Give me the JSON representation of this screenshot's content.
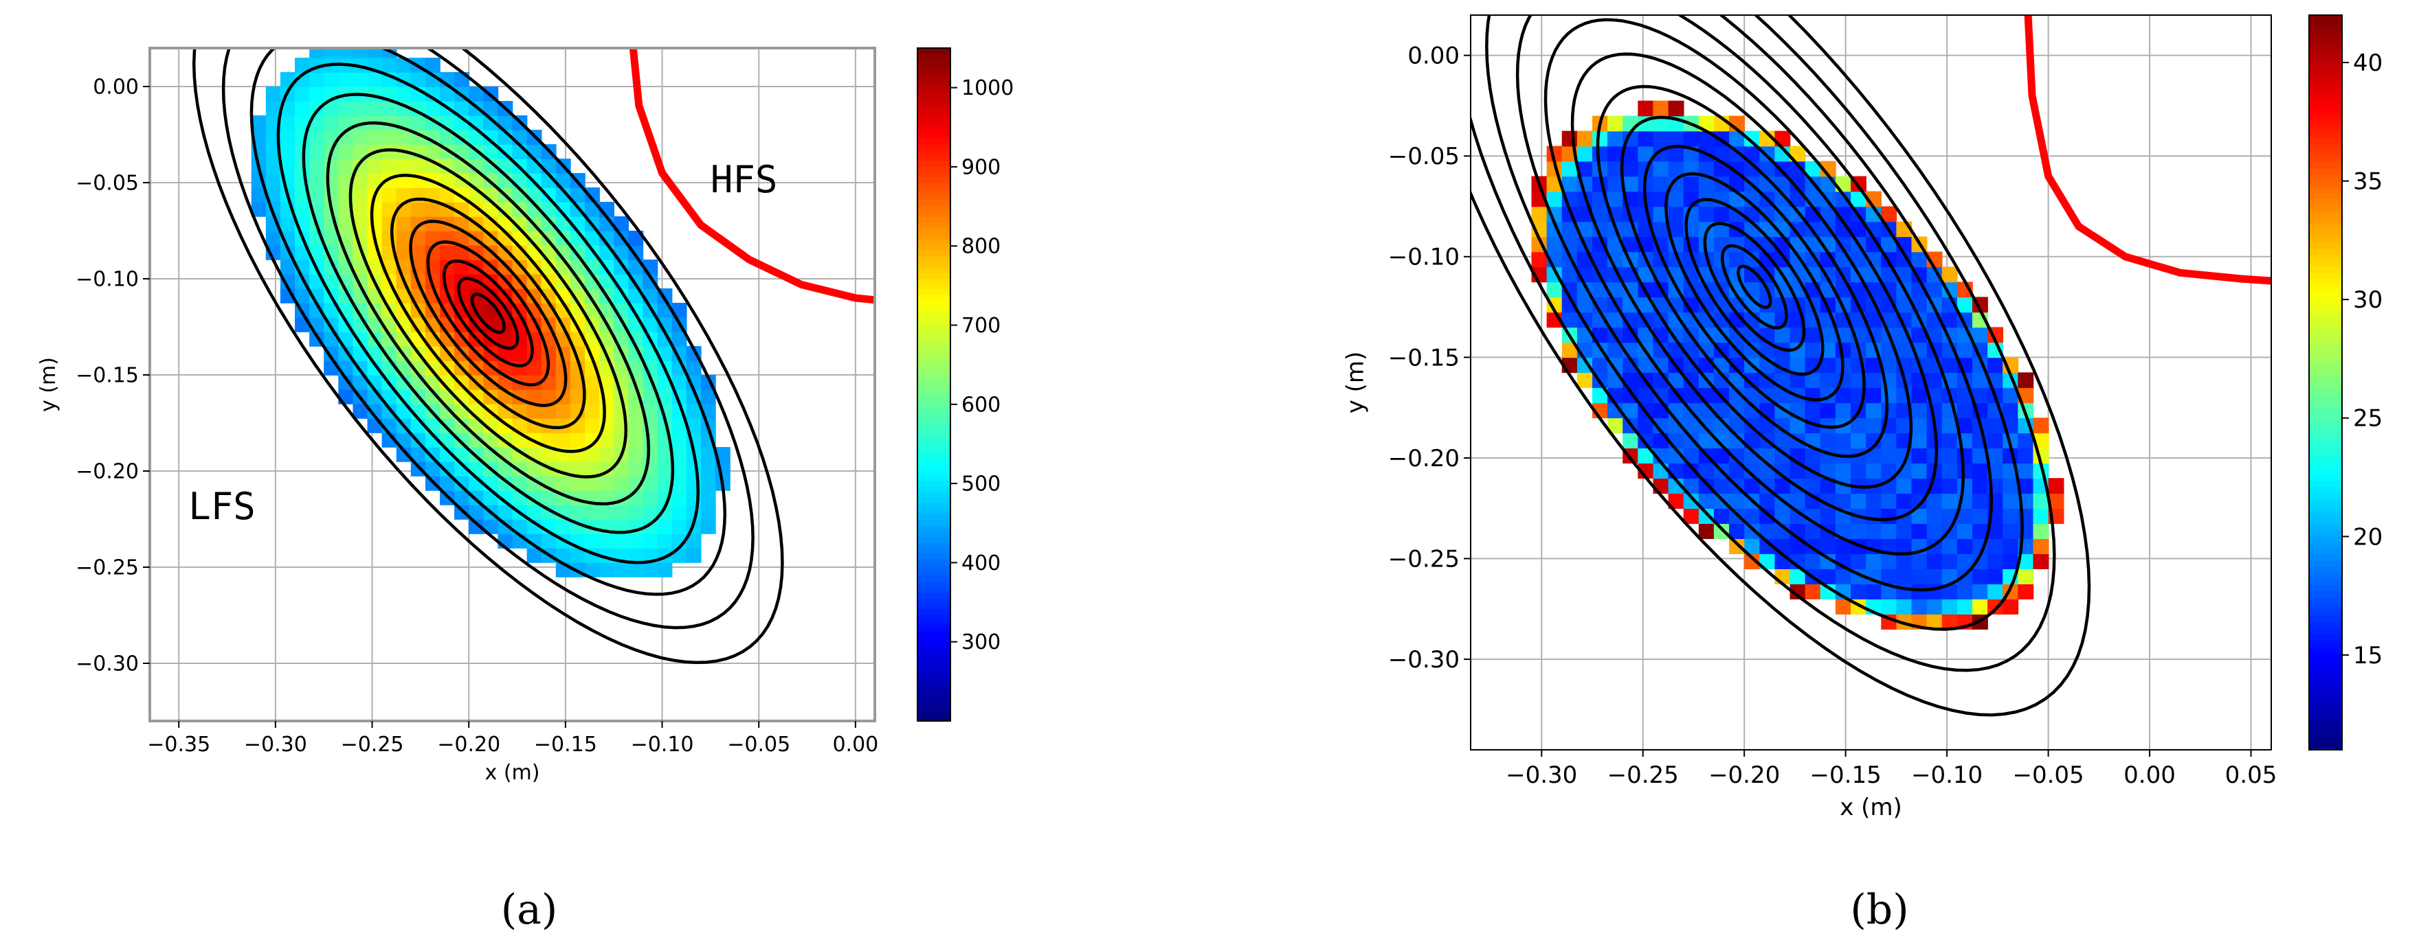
{
  "figure": {
    "panels": [
      {
        "caption": "(a)"
      },
      {
        "caption": "(b)"
      }
    ]
  },
  "colors": {
    "contour": "#000000",
    "boundary": "#ff0000",
    "grid": "#b0b0b0",
    "colormap": "jet"
  },
  "chart_data": [
    {
      "type": "heatmap",
      "panel": "(a)",
      "title": "",
      "xlabel": "x (m)",
      "ylabel": "y (m)",
      "xlim": [
        -0.365,
        0.01
      ],
      "ylim": [
        -0.33,
        0.02
      ],
      "xticks": [
        -0.35,
        -0.3,
        -0.25,
        -0.2,
        -0.15,
        -0.1,
        -0.05,
        0.0
      ],
      "xtick_labels": [
        "−0.35",
        "−0.30",
        "−0.25",
        "−0.20",
        "−0.15",
        "−0.10",
        "−0.05",
        "0.00"
      ],
      "yticks": [
        0.0,
        -0.05,
        -0.1,
        -0.15,
        -0.2,
        -0.25,
        -0.3
      ],
      "ytick_labels": [
        "0.00",
        "−0.05",
        "−0.10",
        "−0.15",
        "−0.20",
        "−0.25",
        "−0.30"
      ],
      "grid": true,
      "colorbar": {
        "range": [
          200,
          1050
        ],
        "ticks": [
          300,
          400,
          500,
          600,
          700,
          800,
          900,
          1000
        ],
        "tick_labels": [
          "300",
          "400",
          "500",
          "600",
          "700",
          "800",
          "900",
          "1000"
        ]
      },
      "annotations": [
        {
          "text": "HFS",
          "x": -0.075,
          "y": -0.055
        },
        {
          "text": "LFS",
          "x": -0.345,
          "y": -0.225
        }
      ],
      "field": {
        "center": [
          -0.19,
          -0.118
        ],
        "angle_deg": -52,
        "sigma_major": 0.095,
        "sigma_minor": 0.042,
        "peak": 1000,
        "base": 210,
        "exponent": 0.75,
        "cell": 0.0075,
        "region_major": 0.165,
        "region_minor": 0.085
      },
      "contours": {
        "center": [
          -0.19,
          -0.118
        ],
        "angle_deg": -52,
        "aspect": 0.4,
        "levels": [
          0.012,
          0.022,
          0.033,
          0.045,
          0.058,
          0.072,
          0.087,
          0.103,
          0.12,
          0.138,
          0.157,
          0.177,
          0.198,
          0.22
        ]
      },
      "boundary": [
        [
          -0.115,
          0.02
        ],
        [
          -0.112,
          -0.01
        ],
        [
          -0.1,
          -0.045
        ],
        [
          -0.08,
          -0.072
        ],
        [
          -0.055,
          -0.09
        ],
        [
          -0.028,
          -0.103
        ],
        [
          0.0,
          -0.11
        ],
        [
          0.01,
          -0.111
        ]
      ]
    },
    {
      "type": "heatmap",
      "panel": "(b)",
      "title": "",
      "xlabel": "x (m)",
      "ylabel": "y (m)",
      "xlim": [
        -0.335,
        0.06
      ],
      "ylim": [
        -0.345,
        0.02
      ],
      "xticks": [
        -0.3,
        -0.25,
        -0.2,
        -0.15,
        -0.1,
        -0.05,
        0.0,
        0.05
      ],
      "xtick_labels": [
        "−0.30",
        "−0.25",
        "−0.20",
        "−0.15",
        "−0.10",
        "−0.05",
        "0.00",
        "0.05"
      ],
      "yticks": [
        0.0,
        -0.05,
        -0.1,
        -0.15,
        -0.2,
        -0.25,
        -0.3
      ],
      "ytick_labels": [
        "0.00",
        "−0.05",
        "−0.10",
        "−0.15",
        "−0.20",
        "−0.25",
        "−0.30"
      ],
      "grid": true,
      "colorbar": {
        "range": [
          11,
          42
        ],
        "ticks": [
          15,
          20,
          25,
          30,
          35,
          40
        ],
        "tick_labels": [
          "15",
          "20",
          "25",
          "30",
          "35",
          "40"
        ]
      },
      "annotations": [],
      "field": {
        "center": [
          -0.175,
          -0.155
        ],
        "angle_deg": -45,
        "cell": 0.0075,
        "region_major": 0.16,
        "region_minor": 0.09,
        "inner": 17,
        "edge": 37
      },
      "contours": {
        "center": [
          -0.195,
          -0.115
        ],
        "angle_deg": -55,
        "aspect": 0.4,
        "levels": [
          0.012,
          0.024,
          0.037,
          0.051,
          0.066,
          0.082,
          0.099,
          0.117,
          0.136,
          0.156,
          0.177,
          0.2,
          0.224,
          0.25
        ]
      },
      "boundary": [
        [
          -0.06,
          0.02
        ],
        [
          -0.058,
          -0.02
        ],
        [
          -0.05,
          -0.06
        ],
        [
          -0.035,
          -0.085
        ],
        [
          -0.012,
          -0.1
        ],
        [
          0.015,
          -0.108
        ],
        [
          0.045,
          -0.111
        ],
        [
          0.06,
          -0.112
        ]
      ]
    }
  ]
}
